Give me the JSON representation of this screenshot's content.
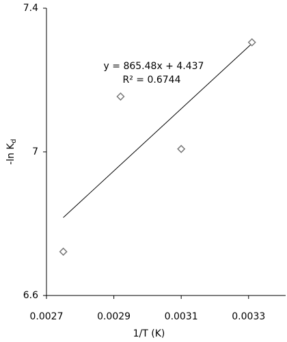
{
  "chart_data": {
    "type": "scatter",
    "x": [
      0.00275,
      0.00292,
      0.0031,
      0.00331
    ],
    "values": [
      6.722,
      7.154,
      7.008,
      7.305
    ],
    "color": "#777777",
    "xlim": [
      0.0027,
      0.00341
    ],
    "xticks": [
      0.0027,
      0.0029,
      0.0031,
      0.0033
    ],
    "ylim": [
      6.6,
      7.4
    ],
    "yticks": [
      6.6,
      7,
      7.4
    ],
    "xlabel": "1/T  (K)",
    "ylabel": {
      "text": "-ln K",
      "sub": "d"
    },
    "trendline": {
      "slope": 865.48,
      "intercept": 4.437,
      "label": "y = 865.48x + 4.437",
      "r2": 0.6744,
      "r2_label": "R² = 0.6744"
    },
    "grid": false
  }
}
